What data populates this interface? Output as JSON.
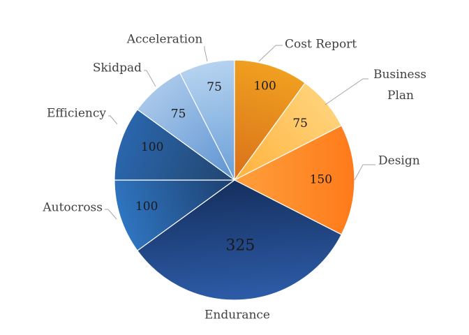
{
  "chart_data": {
    "type": "pie",
    "start": "12 o'clock",
    "direction": "clockwise",
    "slices": [
      {
        "category": "Cost Report",
        "value": 100,
        "color_a": "#f0a020",
        "color_b": "#d9701a"
      },
      {
        "category": "Business Plan",
        "value": 75,
        "color_a": "#ffd27a",
        "color_b": "#ffb23c"
      },
      {
        "category": "Design",
        "value": 150,
        "color_a": "#ff7a1a",
        "color_b": "#ff9f3c"
      },
      {
        "category": "Endurance",
        "value": 325,
        "color_a": "#2d5ca8",
        "color_b": "#152f5e"
      },
      {
        "category": "Autocross",
        "value": 100,
        "color_a": "#2f75c0",
        "color_b": "#1d3f6e"
      },
      {
        "category": "Efficiency",
        "value": 100,
        "color_a": "#2a66ad",
        "color_b": "#22456e"
      },
      {
        "category": "Skidpad",
        "value": 75,
        "color_a": "#a9c8ea",
        "color_b": "#5d93d1"
      },
      {
        "category": "Acceleration",
        "value": 75,
        "color_a": "#b6d3f0",
        "color_b": "#6a9fd8"
      }
    ],
    "legend": "none (category labels with leader lines)"
  }
}
